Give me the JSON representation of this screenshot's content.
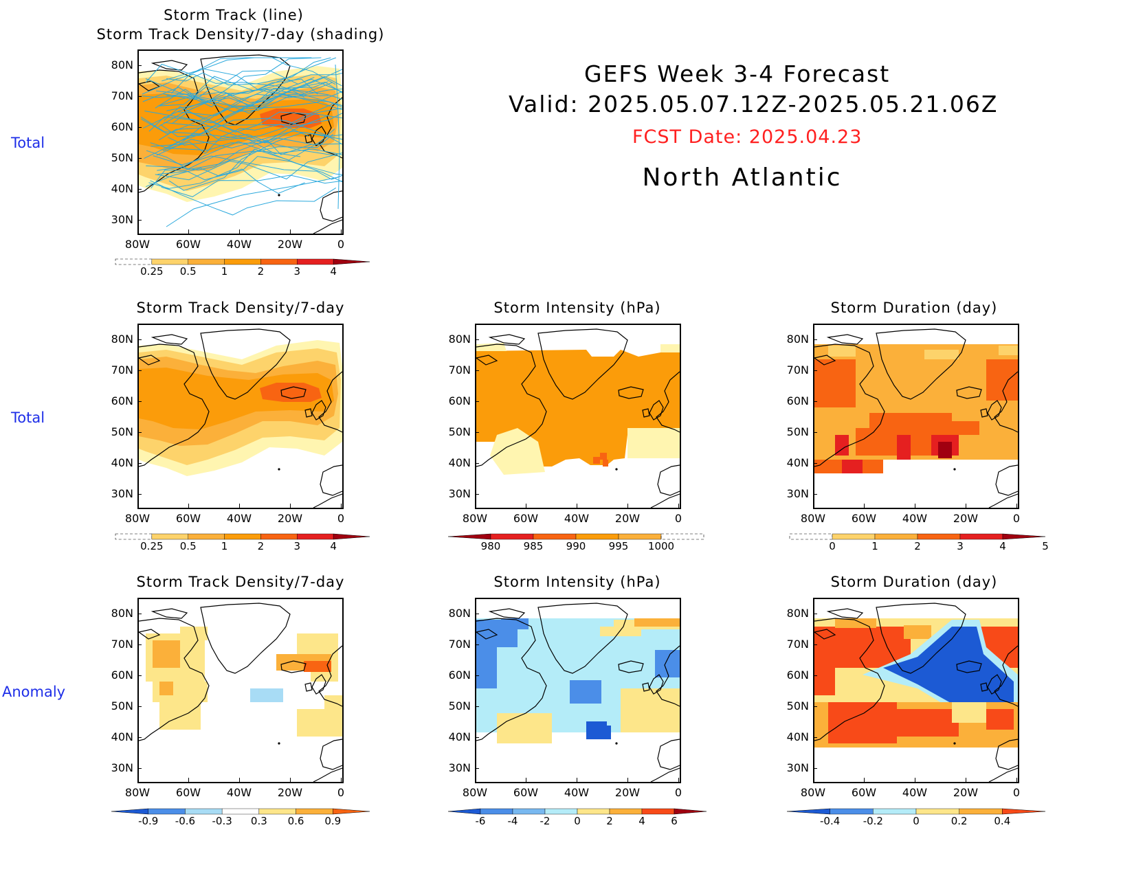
{
  "header": {
    "title": "GEFS Week 3-4 Forecast",
    "valid": "Valid: 2025.05.07.12Z-2025.05.21.06Z",
    "fcst_date": "FCST Date: 2025.04.23",
    "region": "North Atlantic"
  },
  "row_labels": [
    "Total",
    "Total",
    "Anomaly"
  ],
  "axes": {
    "lat_labels": [
      "80N",
      "70N",
      "60N",
      "50N",
      "40N",
      "30N"
    ],
    "lon_labels": [
      "80W",
      "60W",
      "40W",
      "20W",
      "0"
    ]
  },
  "panels": [
    {
      "title_line1": "Storm Track (line)",
      "title_line2": "Storm Track Density/7-day (shading)"
    },
    {
      "title_line1": "Storm Track Density/7-day"
    },
    {
      "title_line1": "Storm Intensity (hPa)"
    },
    {
      "title_line1": "Storm Duration (day)"
    },
    {
      "title_line1": "Storm Track Density/7-day"
    },
    {
      "title_line1": "Storm Intensity (hPa)"
    },
    {
      "title_line1": "Storm Duration (day)"
    }
  ],
  "colorbars": {
    "density": {
      "labels": [
        "0.25",
        "0.5",
        "1",
        "2",
        "3",
        "4"
      ],
      "colors": [
        "#fff5b0",
        "#fdd36b",
        "#fbb03a",
        "#fb9c0a",
        "#f86412",
        "#e52020",
        "#a00010"
      ]
    },
    "intensity": {
      "labels": [
        "980",
        "985",
        "990",
        "995",
        "1000"
      ],
      "colors": [
        "#a00010",
        "#e52020",
        "#f86412",
        "#fb9c0a",
        "#fbb03a",
        "#fff5b0"
      ]
    },
    "duration": {
      "labels": [
        "0",
        "1",
        "2",
        "3",
        "4",
        "5"
      ],
      "colors": [
        "#fff5b0",
        "#fdd36b",
        "#fbb03a",
        "#f86412",
        "#e52020",
        "#a00010"
      ]
    },
    "density_anom": {
      "labels": [
        "-0.9",
        "-0.6",
        "-0.3",
        "0.3",
        "0.6",
        "0.9"
      ],
      "colors": [
        "#1c5ad4",
        "#4b8ee8",
        "#a8dcf5",
        "#ffffff",
        "#fde68a",
        "#fbb03a",
        "#f86412"
      ]
    },
    "intensity_anom": {
      "labels": [
        "-6",
        "-4",
        "-2",
        "0",
        "2",
        "4",
        "6"
      ],
      "colors": [
        "#1c5ad4",
        "#4b8ee8",
        "#78b8f0",
        "#b4ecf8",
        "#fde68a",
        "#fbb03a",
        "#f84a18",
        "#a00010"
      ]
    },
    "duration_anom": {
      "labels": [
        "-0.4",
        "-0.2",
        "0",
        "0.2",
        "0.4"
      ],
      "colors": [
        "#1c5ad4",
        "#4b8ee8",
        "#b4ecf8",
        "#fde68a",
        "#fbb03a",
        "#f84a18"
      ]
    }
  },
  "colors": {
    "row_label": "#1e2ee8",
    "fcst_date": "#ff2020",
    "storm_track_line": "#2aa8dc"
  }
}
